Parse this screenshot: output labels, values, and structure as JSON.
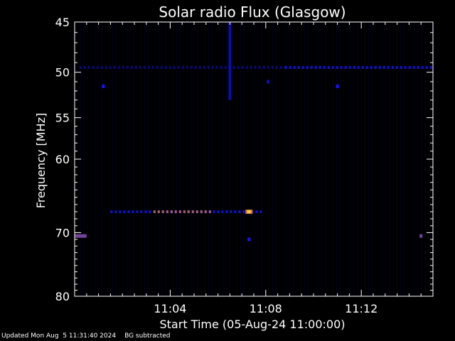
{
  "chart_data": {
    "type": "heatmap",
    "title": "Solar radio Flux (Glasgow)",
    "xlabel": "Start Time (05-Aug-24 11:00:00)",
    "ylabel": "Frequency [MHz]",
    "xlim_minutes": [
      0,
      15.0
    ],
    "ylim": [
      45,
      80
    ],
    "y_scale": "log",
    "x_ticks": [
      {
        "minute": 4,
        "label": "11:04"
      },
      {
        "minute": 8,
        "label": "11:08"
      },
      {
        "minute": 12,
        "label": "11:12"
      }
    ],
    "y_ticks": [
      {
        "value": 45,
        "label": "45"
      },
      {
        "value": 50,
        "label": "50"
      },
      {
        "value": 55,
        "label": "55"
      },
      {
        "value": 60,
        "label": "60"
      },
      {
        "value": 70,
        "label": "70"
      },
      {
        "value": 80,
        "label": "80"
      }
    ],
    "features": [
      {
        "type": "row",
        "freq": 49.5,
        "minute_start": 0.2,
        "minute_end": 8.8,
        "intensity": 0.3,
        "dashed": true
      },
      {
        "type": "row",
        "freq": 49.5,
        "minute_start": 8.8,
        "minute_end": 15.0,
        "intensity": 0.6,
        "dashed": true
      },
      {
        "type": "row",
        "freq": 67.0,
        "minute_start": 1.5,
        "minute_end": 7.8,
        "intensity": 0.55,
        "dashed": true
      },
      {
        "type": "row",
        "freq": 67.0,
        "minute_start": 3.3,
        "minute_end": 5.8,
        "intensity": 0.85,
        "dashed": true
      },
      {
        "type": "point",
        "freq": 67.0,
        "minute": 7.3,
        "intensity": 1.0
      },
      {
        "type": "row",
        "freq": 70.5,
        "minute_start": 0.0,
        "minute_end": 0.5,
        "intensity": 0.8,
        "dashed": false
      },
      {
        "type": "point",
        "freq": 70.5,
        "minute": 14.5,
        "intensity": 0.8
      },
      {
        "type": "point",
        "freq": 71.0,
        "minute": 7.3,
        "intensity": 0.7
      },
      {
        "type": "point",
        "freq": 51.5,
        "minute": 1.2,
        "intensity": 0.7
      },
      {
        "type": "point",
        "freq": 51.5,
        "minute": 11.0,
        "intensity": 0.7
      },
      {
        "type": "point",
        "freq": 51.0,
        "minute": 8.1,
        "intensity": 0.5
      },
      {
        "type": "column",
        "minute": 6.5,
        "freq_start": 45,
        "freq_end": 53,
        "intensity": 0.4
      }
    ],
    "colorscale": {
      "low": "#000010",
      "mid": "#1414ff",
      "high": "#ff8c00",
      "peak": "#ffd040"
    },
    "background_color": "#000000",
    "axis_color": "#ffffff"
  },
  "footer": {
    "updated": "Updated Mon Aug  5 11:31:40 2024",
    "note": "BG subtracted"
  }
}
